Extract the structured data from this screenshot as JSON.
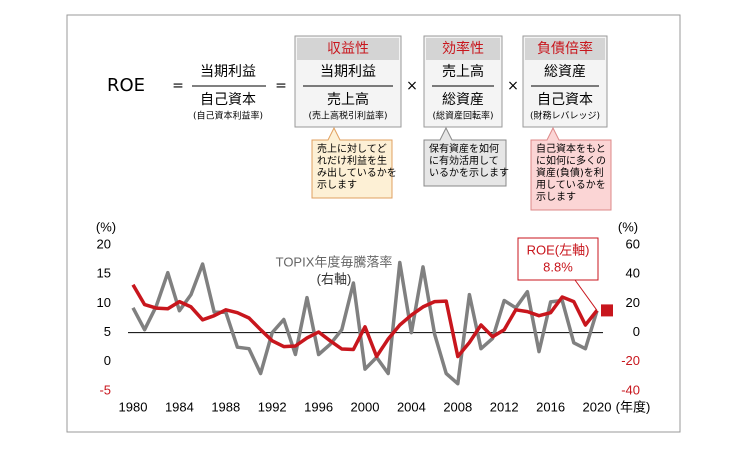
{
  "formula": {
    "lhs": "ROE",
    "eq": "=",
    "times": "×",
    "fraction": {
      "num": "当期利益",
      "den": "自己資本",
      "note": "(自己資本利益率)"
    },
    "factors": [
      {
        "title": "収益性",
        "num": "当期利益",
        "den": "売上高",
        "note": "(売上高税引利益率)",
        "callout": [
          "売上に対してど",
          "れだけ利益を生",
          "み出しているかを",
          "示します"
        ]
      },
      {
        "title": "効率性",
        "num": "売上高",
        "den": "総資産",
        "note": "(総資産回転率)",
        "callout": [
          "保有資産を如何",
          "に有効活用して",
          "いるかを示します"
        ]
      },
      {
        "title": "負債倍率",
        "num": "総資産",
        "den": "自己資本",
        "note": "(財務レバレッジ)",
        "callout": [
          "自己資本をもと",
          "に如何に多くの",
          "資産(負債)を利",
          "用しているかを",
          "示します"
        ]
      }
    ]
  },
  "chart_data": {
    "type": "line",
    "x": [
      1980,
      1981,
      1982,
      1983,
      1984,
      1985,
      1986,
      1987,
      1988,
      1989,
      1990,
      1991,
      1992,
      1993,
      1994,
      1995,
      1996,
      1997,
      1998,
      1999,
      2000,
      2001,
      2002,
      2003,
      2004,
      2005,
      2006,
      2007,
      2008,
      2009,
      2010,
      2011,
      2012,
      2013,
      2014,
      2015,
      2016,
      2017,
      2018,
      2019,
      2020
    ],
    "xlim": [
      1980,
      2020
    ],
    "xticks": [
      1980,
      1984,
      1988,
      1992,
      1996,
      2000,
      2004,
      2008,
      2012,
      2016,
      2020
    ],
    "xlabel": "(年度)",
    "ylim": [
      -5,
      20
    ],
    "yticks": [
      -5,
      0,
      5,
      10,
      15,
      20
    ],
    "ylabel": "(%)",
    "y2lim": [
      -40,
      60
    ],
    "y2ticks": [
      -40,
      -20,
      0,
      20,
      40,
      60
    ],
    "y2label": "(%)",
    "series": [
      {
        "name": "ROE(左軸)",
        "color": "#c8161d",
        "values": [
          13.2,
          9.8,
          9.2,
          9.1,
          10.3,
          9.4,
          7.2,
          7.9,
          8.9,
          8.4,
          7.5,
          5.5,
          3.6,
          2.6,
          2.7,
          4.1,
          5.1,
          3.6,
          2.2,
          2.1,
          6.0,
          0.9,
          3.9,
          6.3,
          8.0,
          9.4,
          10.3,
          10.4,
          0.9,
          3.3,
          6.3,
          4.3,
          5.5,
          8.9,
          8.6,
          7.9,
          8.4,
          11.1,
          10.3,
          6.3,
          8.8
        ]
      },
      {
        "name": "TOPIX年度毎騰落率",
        "color": "#808080",
        "axis": "y2",
        "values": [
          17,
          2,
          18,
          41,
          15,
          26,
          47,
          14,
          14,
          -10,
          -11,
          -28,
          0,
          9,
          -15,
          24,
          -15,
          -8,
          2,
          34,
          -25,
          -17,
          -28,
          48,
          0,
          45,
          -1,
          -28,
          -35,
          26,
          -11,
          -4,
          22,
          17,
          28,
          -13,
          21,
          22,
          -7,
          -11,
          15
        ]
      }
    ],
    "annotations": [
      "(右軸)",
      "8.8%"
    ]
  }
}
